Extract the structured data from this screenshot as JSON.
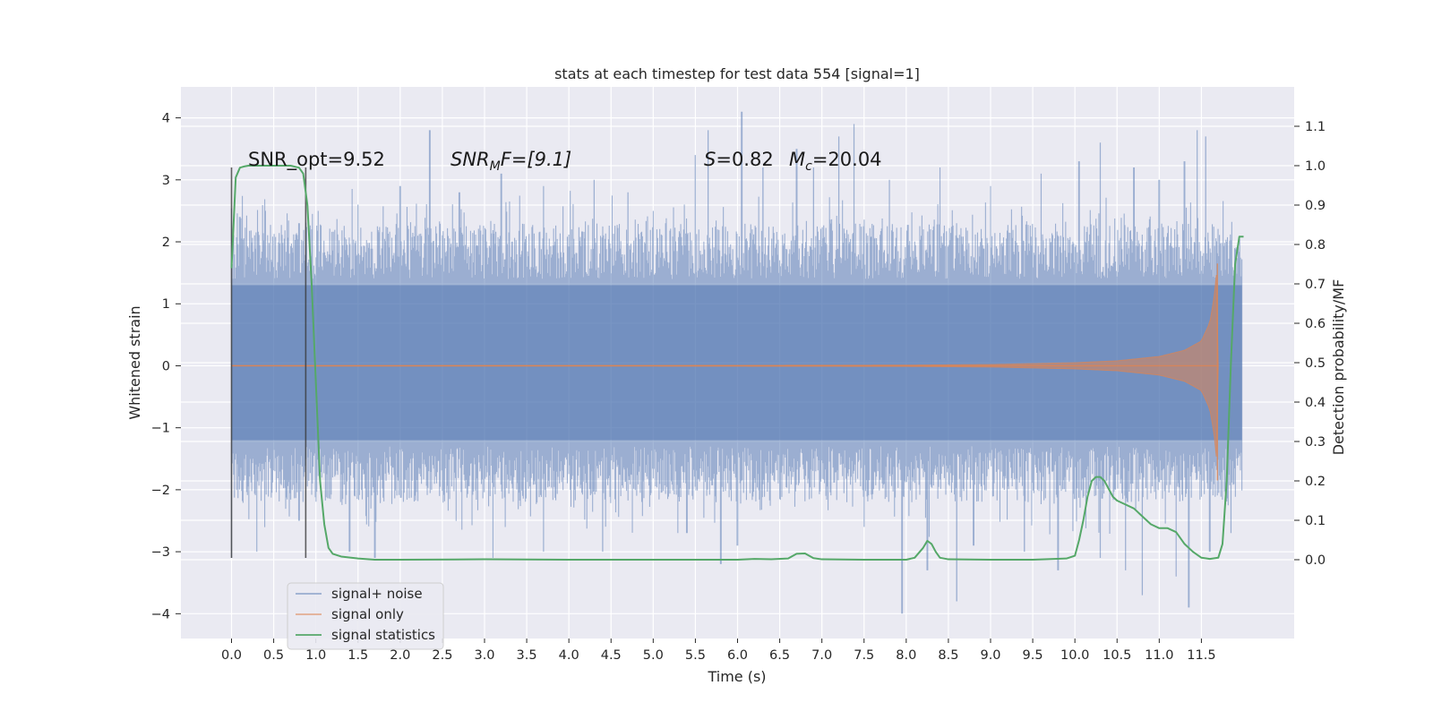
{
  "chart_data": {
    "type": "line",
    "title": "stats at each timestep for test data 554 [signal=1]",
    "xlabel": "Time (s)",
    "ylabel_left": "Whitened strain",
    "ylabel_right": "Detection probability/MF",
    "xlim": [
      -0.6,
      12.6
    ],
    "ylim_left": [
      -4.4,
      4.5
    ],
    "ylim_right": [
      -0.2,
      1.2
    ],
    "xticks": [
      "0.0",
      "0.5",
      "1.0",
      "1.5",
      "2.0",
      "2.5",
      "3.0",
      "3.5",
      "4.0",
      "4.5",
      "5.0",
      "5.5",
      "6.0",
      "6.5",
      "7.0",
      "7.5",
      "8.0",
      "8.5",
      "9.0",
      "9.5",
      "10.0",
      "10.5",
      "11.0",
      "11.5"
    ],
    "xtick_values": [
      0.0,
      0.5,
      1.0,
      1.5,
      2.0,
      2.5,
      3.0,
      3.5,
      4.0,
      4.5,
      5.0,
      5.5,
      6.0,
      6.5,
      7.0,
      7.5,
      8.0,
      8.5,
      9.0,
      9.5,
      10.0,
      10.5,
      11.0,
      11.5
    ],
    "yticks_left": [
      "−4",
      "−3",
      "−2",
      "−1",
      "0",
      "1",
      "2",
      "3",
      "4"
    ],
    "ytick_values_left": [
      -4,
      -3,
      -2,
      -1,
      0,
      1,
      2,
      3,
      4
    ],
    "yticks_right": [
      "0.0",
      "0.1",
      "0.2",
      "0.3",
      "0.4",
      "0.5",
      "0.6",
      "0.7",
      "0.8",
      "0.9",
      "1.0",
      "1.1"
    ],
    "ytick_values_right": [
      0.0,
      0.1,
      0.2,
      0.3,
      0.4,
      0.5,
      0.6,
      0.7,
      0.8,
      0.9,
      1.0,
      1.1
    ],
    "grid": true,
    "legend_placement": "lower-left",
    "annotations": {
      "snr_opt": "SNR_opt=9.52",
      "snr_mf_base": "SNR",
      "snr_mf_sub": "M",
      "snr_mf_rest": "F=[9.1]",
      "s_base": "S",
      "s_rest": "=0.82",
      "mc_base": "M",
      "mc_sub": "c",
      "mc_rest": "=20.04"
    },
    "vertical_markers": [
      {
        "x": 0.0,
        "y_range": [
          -3.1,
          3.2
        ]
      },
      {
        "x": 0.88,
        "y_range": [
          -3.1,
          3.2
        ]
      }
    ],
    "series": [
      {
        "name": "signal+ noise",
        "color": "#4c72b0",
        "style": "noise",
        "x_range": [
          0.0,
          11.98
        ],
        "peaks_high": [
          [
            0.1,
            2.4
          ],
          [
            0.4,
            2.5
          ],
          [
            0.8,
            2.3
          ],
          [
            1.5,
            2.6
          ],
          [
            2.0,
            2.9
          ],
          [
            2.35,
            3.8
          ],
          [
            2.7,
            2.8
          ],
          [
            3.2,
            3.1
          ],
          [
            3.7,
            2.9
          ],
          [
            4.3,
            3.0
          ],
          [
            4.7,
            2.8
          ],
          [
            5.5,
            3.4
          ],
          [
            5.65,
            3.8
          ],
          [
            6.05,
            4.1
          ],
          [
            6.3,
            3.2
          ],
          [
            6.7,
            3.5
          ],
          [
            6.9,
            3.2
          ],
          [
            7.2,
            3.7
          ],
          [
            7.38,
            3.9
          ],
          [
            7.8,
            3.0
          ],
          [
            8.4,
            3.2
          ],
          [
            9.0,
            2.9
          ],
          [
            9.6,
            3.1
          ],
          [
            10.05,
            3.3
          ],
          [
            10.3,
            3.6
          ],
          [
            10.7,
            3.2
          ],
          [
            11.0,
            3.0
          ],
          [
            11.3,
            3.3
          ],
          [
            11.45,
            3.8
          ],
          [
            11.55,
            3.7
          ],
          [
            11.8,
            2.0
          ]
        ],
        "peaks_low": [
          [
            0.0,
            -3.1
          ],
          [
            0.3,
            -3.0
          ],
          [
            0.8,
            -2.5
          ],
          [
            1.4,
            -3.0
          ],
          [
            1.7,
            -3.1
          ],
          [
            3.1,
            -3.1
          ],
          [
            3.7,
            -3.0
          ],
          [
            4.4,
            -3.0
          ],
          [
            5.4,
            -2.7
          ],
          [
            5.8,
            -3.2
          ],
          [
            6.0,
            -2.9
          ],
          [
            7.5,
            -2.6
          ],
          [
            7.95,
            -4.0
          ],
          [
            8.25,
            -3.3
          ],
          [
            8.6,
            -3.8
          ],
          [
            8.8,
            -2.9
          ],
          [
            9.4,
            -3.0
          ],
          [
            9.8,
            -3.3
          ],
          [
            10.3,
            -3.1
          ],
          [
            10.6,
            -3.3
          ],
          [
            10.8,
            -3.7
          ],
          [
            11.2,
            -3.4
          ],
          [
            11.35,
            -3.9
          ],
          [
            11.6,
            -3.0
          ],
          [
            11.85,
            -2.7
          ]
        ]
      },
      {
        "name": "signal only",
        "color": "#dd8452",
        "style": "chirp",
        "x_range": [
          0.0,
          11.7
        ],
        "envelope": [
          [
            0.0,
            0.003
          ],
          [
            5.0,
            0.005
          ],
          [
            8.0,
            0.01
          ],
          [
            9.0,
            0.02
          ],
          [
            10.0,
            0.05
          ],
          [
            10.5,
            0.08
          ],
          [
            11.0,
            0.15
          ],
          [
            11.3,
            0.25
          ],
          [
            11.5,
            0.4
          ],
          [
            11.6,
            0.7
          ],
          [
            11.65,
            1.1
          ],
          [
            11.69,
            1.65
          ],
          [
            11.7,
            0.0
          ]
        ]
      },
      {
        "name": "signal statistics",
        "color": "#55a868",
        "axis": "right",
        "x": [
          0.0,
          0.05,
          0.1,
          0.15,
          0.2,
          0.3,
          0.4,
          0.5,
          0.6,
          0.7,
          0.8,
          0.85,
          0.9,
          0.95,
          1.0,
          1.05,
          1.1,
          1.15,
          1.2,
          1.3,
          1.5,
          1.7,
          2.0,
          3.0,
          4.0,
          5.0,
          5.5,
          6.0,
          6.2,
          6.4,
          6.6,
          6.7,
          6.8,
          6.9,
          7.0,
          7.5,
          8.0,
          8.1,
          8.2,
          8.25,
          8.3,
          8.35,
          8.4,
          8.5,
          9.0,
          9.5,
          9.9,
          10.0,
          10.05,
          10.1,
          10.15,
          10.2,
          10.25,
          10.3,
          10.35,
          10.4,
          10.45,
          10.5,
          10.6,
          10.7,
          10.8,
          10.9,
          11.0,
          11.1,
          11.2,
          11.3,
          11.4,
          11.5,
          11.6,
          11.7,
          11.75,
          11.8,
          11.85,
          11.9,
          11.95,
          12.0
        ],
        "y": [
          0.74,
          0.97,
          0.995,
          0.998,
          1.0,
          1.0,
          1.0,
          1.0,
          1.0,
          1.0,
          0.995,
          0.98,
          0.9,
          0.7,
          0.45,
          0.2,
          0.09,
          0.03,
          0.015,
          0.008,
          0.003,
          0.0,
          0.0,
          0.001,
          0.0,
          0.0,
          0.0,
          0.0,
          0.002,
          0.001,
          0.003,
          0.015,
          0.016,
          0.004,
          0.001,
          0.0,
          0.0,
          0.005,
          0.03,
          0.048,
          0.04,
          0.02,
          0.005,
          0.001,
          0.0,
          0.0,
          0.003,
          0.01,
          0.05,
          0.1,
          0.16,
          0.2,
          0.21,
          0.21,
          0.2,
          0.18,
          0.16,
          0.15,
          0.14,
          0.13,
          0.11,
          0.09,
          0.08,
          0.08,
          0.07,
          0.04,
          0.02,
          0.005,
          0.002,
          0.005,
          0.04,
          0.2,
          0.5,
          0.75,
          0.82,
          0.82
        ]
      }
    ],
    "legend": [
      "signal+ noise",
      "signal only",
      "signal statistics"
    ]
  }
}
